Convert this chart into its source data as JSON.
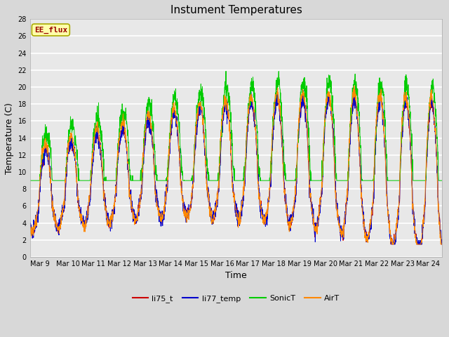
{
  "title": "Instument Temperatures",
  "xlabel": "Time",
  "ylabel": "Temperature (C)",
  "ylim": [
    0,
    28
  ],
  "annotation": "EE_flux",
  "annotation_color": "#990000",
  "annotation_bg": "#FFFFAA",
  "annotation_edge": "#AAAA00",
  "fig_bg": "#D8D8D8",
  "plot_bg": "#E8E8E8",
  "grid_color": "white",
  "legend_labels": [
    "li75_t",
    "li77_temp",
    "SonicT",
    "AirT"
  ],
  "line_colors": [
    "#CC0000",
    "#0000CC",
    "#00CC00",
    "#FF8800"
  ],
  "x_tick_labels": [
    "Mar 9",
    "Mar 10",
    "Mar 11",
    "Mar 12",
    "Mar 13",
    "Mar 14",
    "Mar 15",
    "Mar 16",
    "Mar 17",
    "Mar 18",
    "Mar 19",
    "Mar 20",
    "Mar 21",
    "Mar 22",
    "Mar 23",
    "Mar 24"
  ],
  "yticks": [
    0,
    2,
    4,
    6,
    8,
    10,
    12,
    14,
    16,
    18,
    20,
    22,
    24,
    26,
    28
  ],
  "title_fontsize": 11,
  "axis_fontsize": 9,
  "tick_fontsize": 7,
  "legend_fontsize": 8
}
